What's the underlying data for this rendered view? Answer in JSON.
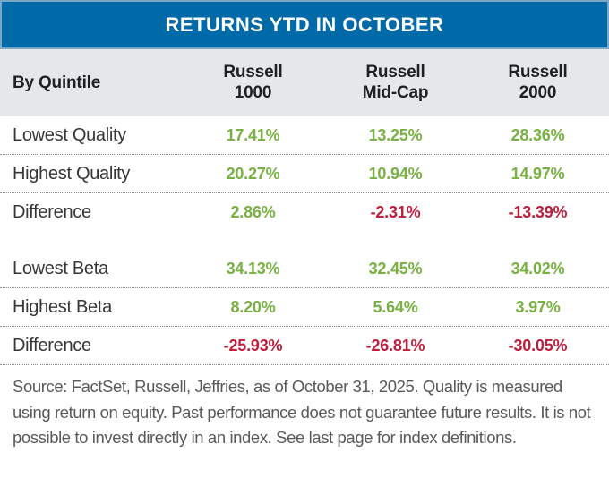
{
  "colors": {
    "title_bg": "#0069A7",
    "title_border": "#7BA6C6",
    "subheader_bg": "#E4E8EB",
    "positive": "#78B042",
    "negative": "#BE1E3D",
    "label_text": "#353638",
    "header_text": "#1E2021",
    "footer_text": "#58595B",
    "dotted_line": "#8C8C8C"
  },
  "title": "RETURNS YTD IN OCTOBER",
  "table": {
    "corner_label": "By Quintile",
    "columns": [
      {
        "line1": "Russell",
        "line2": "1000"
      },
      {
        "line1": "Russell",
        "line2": "Mid-Cap"
      },
      {
        "line1": "Russell",
        "line2": "2000"
      }
    ],
    "groups": [
      {
        "rows": [
          {
            "label": "Lowest Quality",
            "values": [
              "17.41%",
              "13.25%",
              "28.36%"
            ]
          },
          {
            "label": "Highest Quality",
            "values": [
              "20.27%",
              "10.94%",
              "14.97%"
            ]
          },
          {
            "label": "Difference",
            "values": [
              "2.86%",
              "-2.31%",
              "-13.39%"
            ]
          }
        ]
      },
      {
        "rows": [
          {
            "label": "Lowest Beta",
            "values": [
              "34.13%",
              "32.45%",
              "34.02%"
            ]
          },
          {
            "label": "Highest Beta",
            "values": [
              "8.20%",
              "5.64%",
              "3.97%"
            ]
          },
          {
            "label": "Difference",
            "values": [
              "-25.93%",
              "-26.81%",
              "-30.05%"
            ]
          }
        ]
      }
    ]
  },
  "footer_note": "Source: FactSet, Russell, Jeffries, as of October 31, 2025. Quality is measured using return on equity. Past performance does not guarantee future results. It is not possible to invest directly in an index. See last page for index definitions.",
  "chart_data": {
    "type": "table",
    "title": "RETURNS YTD IN OCTOBER",
    "columns": [
      "By Quintile",
      "Russell 1000",
      "Russell Mid-Cap",
      "Russell 2000"
    ],
    "rows": [
      [
        "Lowest Quality",
        17.41,
        13.25,
        28.36
      ],
      [
        "Highest Quality",
        20.27,
        10.94,
        14.97
      ],
      [
        "Difference",
        2.86,
        -2.31,
        -13.39
      ],
      [
        "Lowest Beta",
        34.13,
        32.45,
        34.02
      ],
      [
        "Highest Beta",
        8.2,
        5.64,
        3.97
      ],
      [
        "Difference",
        -25.93,
        -26.81,
        -30.05
      ]
    ],
    "units": "percent",
    "value_color_rule": "positive values green (#78B042), negative values red (#BE1E3D)",
    "layout": "two row-groups (Quality, Beta) separated by whitespace; dotted row separators"
  }
}
